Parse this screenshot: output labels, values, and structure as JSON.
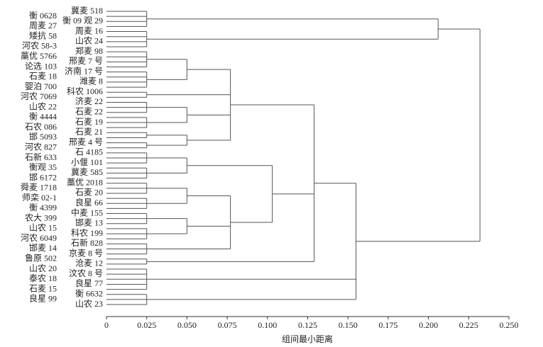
{
  "chart_data": {
    "type": "dendrogram",
    "x_label": "组间最小距离",
    "color": "#555555",
    "xlim": [
      0,
      0.25
    ],
    "xticks": [
      0,
      0.025,
      {
        "value": 0.05,
        "label": "0.050"
      },
      0.075,
      {
        "value": 0.1,
        "label": "0.100"
      },
      0.125,
      {
        "value": 0.15,
        "label": "0.150"
      },
      0.175,
      {
        "value": 0.2,
        "label": "0.200"
      },
      0.225,
      {
        "value": 0.25,
        "label": "0.250"
      }
    ],
    "tree": {
      "height": 0.232,
      "children": [
        {
          "height": 0.206,
          "children": [
            {
              "height": 0.025,
              "children": [
                "冀麦 518",
                "衡 0628",
                "衡 09 观 29",
                "周麦 27"
              ]
            },
            {
              "height": 0.025,
              "children": [
                "周麦 16",
                "矮抗 58",
                "山农 24",
                "河农 58-3"
              ]
            }
          ]
        },
        {
          "height": 0.155,
          "children": [
            {
              "height": 0.129,
              "children": [
                {
                  "height": 0.077,
                  "children": [
                    {
                      "height": 0.05,
                      "children": [
                        {
                          "height": 0.025,
                          "children": [
                            "郑麦 98",
                            "藁优 5766",
                            "邢麦 7 号",
                            "论选 103"
                          ]
                        },
                        {
                          "height": 0.025,
                          "children": [
                            "济南 17 号",
                            "石麦 18",
                            "潍麦 8",
                            "婴泊 700"
                          ]
                        }
                      ]
                    },
                    {
                      "height": 0.025,
                      "children": [
                        "科农 1006",
                        "河农 7069"
                      ]
                    },
                    {
                      "height": 0.05,
                      "children": [
                        {
                          "height": 0.025,
                          "children": [
                            "济麦 22",
                            "山农 22",
                            "石麦 22"
                          ]
                        },
                        {
                          "height": 0.025,
                          "children": [
                            "衡 4444",
                            "石麦 19",
                            "石农 086"
                          ]
                        }
                      ]
                    },
                    {
                      "height": 0.05,
                      "children": [
                        {
                          "height": 0.025,
                          "children": [
                            "石麦 21",
                            "邯 5093"
                          ]
                        },
                        {
                          "height": 0.025,
                          "children": [
                            "邢麦 4 号",
                            "河农 827"
                          ]
                        }
                      ]
                    }
                  ]
                },
                {
                  "height": 0.103,
                  "children": [
                    {
                      "height": 0.05,
                      "children": [
                        {
                          "height": 0.025,
                          "children": [
                            "石 4185",
                            "石新 633",
                            "小偃 101"
                          ]
                        },
                        {
                          "height": 0.025,
                          "children": [
                            "衡观 35",
                            "冀麦 585",
                            "邯 6172"
                          ]
                        }
                      ]
                    },
                    {
                      "height": 0.077,
                      "children": [
                        {
                          "height": 0.05,
                          "children": [
                            {
                              "height": 0.025,
                              "children": [
                                "藁优 2018",
                                "舜麦 1718",
                                "石麦 20"
                              ]
                            },
                            {
                              "height": 0.025,
                              "children": [
                                "师栾 02-1",
                                "良星 66",
                                "衡 4399"
                              ]
                            }
                          ]
                        },
                        {
                          "height": 0.05,
                          "children": [
                            {
                              "height": 0.025,
                              "children": [
                                "中麦 155",
                                "农大 399",
                                "邯麦 13"
                              ]
                            },
                            {
                              "height": 0.025,
                              "children": [
                                "山农 15",
                                "科农 199",
                                "河农 6049"
                              ]
                            }
                          ]
                        },
                        {
                          "height": 0.025,
                          "children": [
                            "石新 828",
                            "邯麦 14",
                            "京麦 8 号"
                          ]
                        }
                      ]
                    }
                  ]
                },
                {
                  "height": 0.025,
                  "children": [
                    "鲁原 502",
                    "沧麦 12"
                  ]
                }
              ]
            },
            {
              "height": 0.025,
              "children": [
                "山农 20",
                "汶农 8 号",
                "泰农 18",
                "良星 77",
                "石麦 15"
              ]
            },
            {
              "height": 0.025,
              "children": [
                "衡 6632",
                "良星 99",
                "山农 23"
              ]
            }
          ]
        }
      ]
    }
  }
}
